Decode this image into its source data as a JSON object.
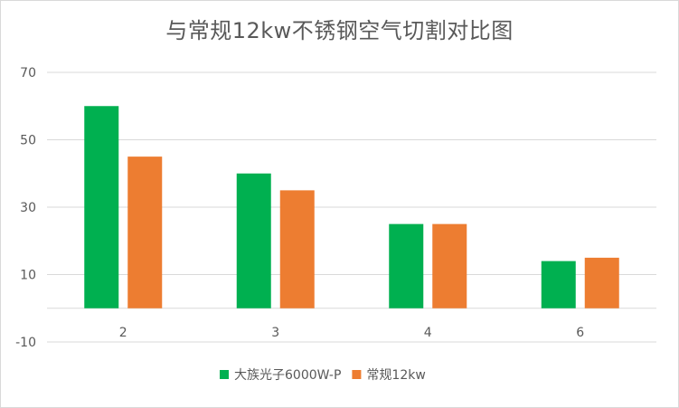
{
  "chart_data": {
    "type": "bar",
    "title": "与常规12kw不锈钢空气切割对比图",
    "categories": [
      "2",
      "3",
      "4",
      "6"
    ],
    "series": [
      {
        "name": "大族光子6000W-P",
        "values": [
          60,
          40,
          25,
          14
        ],
        "color": "#00b050"
      },
      {
        "name": "常规12kw",
        "values": [
          45,
          35,
          25,
          15
        ],
        "color": "#ed7d31"
      }
    ],
    "yticks": [
      -10,
      10,
      30,
      50,
      70
    ],
    "ylim": [
      -10,
      70
    ],
    "xlabel": "",
    "ylabel": "",
    "grid": true,
    "legend_position": "bottom"
  }
}
